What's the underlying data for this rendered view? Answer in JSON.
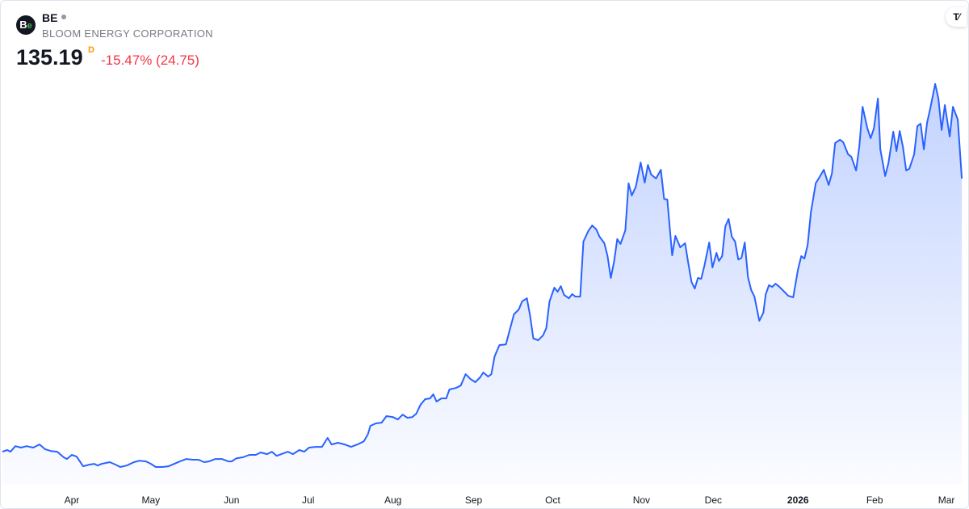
{
  "header": {
    "logo_text": "Be",
    "ticker": "BE",
    "company": "BLOOM ENERGY CORPORATION",
    "price": "135.19",
    "interval": "D",
    "change": "-15.47% (24.75)",
    "watermark": "TV"
  },
  "colors": {
    "line": "#2962ff",
    "negative": "#f23645",
    "interval": "#ff9800"
  },
  "chart_data": {
    "type": "area",
    "title": "BE",
    "xlabel": "",
    "ylabel": "",
    "x_unit": "days since start (approx. early Mar 2025)",
    "ylim": [
      0,
      208.5
    ],
    "xlim": [
      0,
      357
    ],
    "grid": false,
    "x_ticks": [
      {
        "label": "Apr",
        "day": 25.8
      },
      {
        "label": "May",
        "day": 55.2
      },
      {
        "label": "Jun",
        "day": 85.2
      },
      {
        "label": "Jul",
        "day": 113.7
      },
      {
        "label": "Aug",
        "day": 145.2
      },
      {
        "label": "Sep",
        "day": 175.2
      },
      {
        "label": "Oct",
        "day": 204.6
      },
      {
        "label": "Nov",
        "day": 237.6
      },
      {
        "label": "Dec",
        "day": 264.3
      },
      {
        "label": "2026",
        "day": 295.8,
        "bold": true
      },
      {
        "label": "Feb",
        "day": 324.3
      },
      {
        "label": "Mar",
        "day": 351.0
      }
    ],
    "series": [
      {
        "name": "BE",
        "points": [
          [
            0,
            22.5
          ],
          [
            1.8,
            23.2
          ],
          [
            3,
            22.5
          ],
          [
            4.8,
            24.8
          ],
          [
            6.9,
            24.2
          ],
          [
            9,
            24.8
          ],
          [
            11.4,
            24.2
          ],
          [
            13.8,
            25.5
          ],
          [
            15.9,
            23.5
          ],
          [
            18,
            22.8
          ],
          [
            20.4,
            22.5
          ],
          [
            22.8,
            20.2
          ],
          [
            24,
            19.5
          ],
          [
            25.8,
            21.2
          ],
          [
            27.6,
            20.5
          ],
          [
            30,
            16.5
          ],
          [
            32.4,
            17.2
          ],
          [
            34.2,
            17.5
          ],
          [
            35.4,
            16.8
          ],
          [
            36.9,
            17.5
          ],
          [
            39.9,
            18.2
          ],
          [
            42,
            17.2
          ],
          [
            43.8,
            16.2
          ],
          [
            46.2,
            16.8
          ],
          [
            48.9,
            18.2
          ],
          [
            51,
            18.8
          ],
          [
            53.4,
            18.5
          ],
          [
            55.2,
            17.5
          ],
          [
            57,
            16.2
          ],
          [
            59.4,
            16.2
          ],
          [
            61.8,
            16.5
          ],
          [
            63.9,
            17.5
          ],
          [
            66,
            18.5
          ],
          [
            68.4,
            19.5
          ],
          [
            70.8,
            19.2
          ],
          [
            72.9,
            19.2
          ],
          [
            75,
            18.2
          ],
          [
            76.8,
            18.5
          ],
          [
            79.2,
            19.5
          ],
          [
            81.6,
            19.5
          ],
          [
            84,
            18.5
          ],
          [
            85.2,
            18.5
          ],
          [
            87,
            19.8
          ],
          [
            89.4,
            20.2
          ],
          [
            91.8,
            21.2
          ],
          [
            94.2,
            21.2
          ],
          [
            96,
            22.2
          ],
          [
            98.4,
            21.5
          ],
          [
            100.2,
            22.5
          ],
          [
            102,
            20.8
          ],
          [
            104.4,
            21.8
          ],
          [
            106.2,
            22.5
          ],
          [
            108,
            21.5
          ],
          [
            110.4,
            23.2
          ],
          [
            112.2,
            22.5
          ],
          [
            114,
            24.2
          ],
          [
            116.4,
            24.5
          ],
          [
            118.8,
            24.5
          ],
          [
            120.9,
            28.2
          ],
          [
            122.4,
            25.5
          ],
          [
            124.8,
            26.2
          ],
          [
            127.2,
            25.5
          ],
          [
            129.6,
            24.5
          ],
          [
            132,
            25.5
          ],
          [
            134.4,
            26.8
          ],
          [
            135.9,
            29.8
          ],
          [
            136.8,
            33.2
          ],
          [
            138.9,
            34.2
          ],
          [
            141,
            34.5
          ],
          [
            142.8,
            37.2
          ],
          [
            145.2,
            36.8
          ],
          [
            147,
            35.8
          ],
          [
            148.8,
            37.8
          ],
          [
            150.6,
            36.5
          ],
          [
            152.4,
            36.8
          ],
          [
            153.9,
            38.2
          ],
          [
            155.4,
            41.8
          ],
          [
            157.2,
            44.2
          ],
          [
            159,
            44.5
          ],
          [
            160.2,
            46.2
          ],
          [
            161.4,
            43.2
          ],
          [
            163.2,
            44.5
          ],
          [
            165,
            44.5
          ],
          [
            166.2,
            48.2
          ],
          [
            168.6,
            48.8
          ],
          [
            170.4,
            49.8
          ],
          [
            172.2,
            54.5
          ],
          [
            174,
            52.5
          ],
          [
            175.8,
            51.2
          ],
          [
            177.6,
            53.2
          ],
          [
            178.8,
            55.2
          ],
          [
            180.6,
            53.5
          ],
          [
            181.8,
            54.5
          ],
          [
            183,
            61.8
          ],
          [
            184.8,
            66.5
          ],
          [
            187.2,
            66.8
          ],
          [
            188.4,
            71.8
          ],
          [
            190.2,
            79.2
          ],
          [
            192,
            81.2
          ],
          [
            193.2,
            84.5
          ],
          [
            195,
            85.8
          ],
          [
            196.2,
            78.5
          ],
          [
            197.4,
            69.2
          ],
          [
            199.2,
            68.5
          ],
          [
            201,
            70.5
          ],
          [
            202.2,
            73.5
          ],
          [
            203.4,
            84.5
          ],
          [
            205.2,
            90.2
          ],
          [
            206.4,
            88.5
          ],
          [
            207.6,
            90.8
          ],
          [
            208.8,
            87.2
          ],
          [
            210.6,
            85.8
          ],
          [
            211.8,
            87.5
          ],
          [
            213,
            86.5
          ],
          [
            214.8,
            86.5
          ],
          [
            216,
            109.2
          ],
          [
            217.8,
            113.5
          ],
          [
            219.3,
            115.8
          ],
          [
            220.8,
            114.2
          ],
          [
            222,
            111.2
          ],
          [
            223.8,
            108.5
          ],
          [
            225,
            103.2
          ],
          [
            226.2,
            94.2
          ],
          [
            227.4,
            100.8
          ],
          [
            228.6,
            110.2
          ],
          [
            229.8,
            108.2
          ],
          [
            231.6,
            113.8
          ],
          [
            232.8,
            133.2
          ],
          [
            234,
            128.2
          ],
          [
            235.5,
            131.8
          ],
          [
            237.3,
            141.8
          ],
          [
            238.8,
            133.5
          ],
          [
            240,
            140.8
          ],
          [
            241.2,
            136.8
          ],
          [
            243,
            135.2
          ],
          [
            244.8,
            138.8
          ],
          [
            246,
            126.8
          ],
          [
            247.2,
            126.5
          ],
          [
            249,
            103.5
          ],
          [
            250.2,
            111.5
          ],
          [
            252,
            106.8
          ],
          [
            253.8,
            108.5
          ],
          [
            255,
            100.2
          ],
          [
            256.2,
            92.5
          ],
          [
            257.4,
            89.8
          ],
          [
            258.6,
            94.2
          ],
          [
            259.8,
            93.8
          ],
          [
            261,
            99.2
          ],
          [
            262.8,
            108.8
          ],
          [
            264,
            98.5
          ],
          [
            265.5,
            104.5
          ],
          [
            266.4,
            101.2
          ],
          [
            267.6,
            103.2
          ],
          [
            268.8,
            115.5
          ],
          [
            270,
            118.5
          ],
          [
            271.2,
            111.2
          ],
          [
            272.4,
            109.2
          ],
          [
            273.6,
            101.8
          ],
          [
            274.8,
            102.5
          ],
          [
            276,
            108.8
          ],
          [
            277.2,
            94.5
          ],
          [
            278.4,
            89.2
          ],
          [
            279.6,
            86.5
          ],
          [
            281.4,
            76.5
          ],
          [
            282.9,
            79.8
          ],
          [
            283.8,
            87.5
          ],
          [
            285,
            91.2
          ],
          [
            286.2,
            90.5
          ],
          [
            287.4,
            91.8
          ],
          [
            288.6,
            90.8
          ],
          [
            290.4,
            88.8
          ],
          [
            292.2,
            86.8
          ],
          [
            294,
            86.2
          ],
          [
            295.8,
            97.8
          ],
          [
            297,
            103.2
          ],
          [
            298.2,
            102.2
          ],
          [
            299.4,
            107.8
          ],
          [
            300.6,
            121.2
          ],
          [
            302.4,
            133.2
          ],
          [
            304.2,
            136.5
          ],
          [
            305.4,
            138.8
          ],
          [
            307.2,
            132.5
          ],
          [
            308.4,
            137.2
          ],
          [
            309.6,
            149.8
          ],
          [
            311.4,
            151.2
          ],
          [
            312.6,
            150.2
          ],
          [
            314.4,
            145.2
          ],
          [
            315.6,
            144.2
          ],
          [
            317.4,
            138.5
          ],
          [
            318.6,
            148.5
          ],
          [
            319.8,
            164.8
          ],
          [
            321.6,
            155.8
          ],
          [
            322.8,
            151.8
          ],
          [
            324,
            155.8
          ],
          [
            325.5,
            168.2
          ],
          [
            326.4,
            147.2
          ],
          [
            328.2,
            136.2
          ],
          [
            329.4,
            141.5
          ],
          [
            331.2,
            154.5
          ],
          [
            332.4,
            146.5
          ],
          [
            333.6,
            154.8
          ],
          [
            334.8,
            148.2
          ],
          [
            336,
            138.5
          ],
          [
            337.2,
            139.2
          ],
          [
            339,
            145.2
          ],
          [
            340.2,
            156.8
          ],
          [
            341.4,
            157.8
          ],
          [
            342.6,
            147.2
          ],
          [
            343.8,
            158.2
          ],
          [
            345,
            164.2
          ],
          [
            346.8,
            174.2
          ],
          [
            348,
            168.2
          ],
          [
            349.2,
            155.2
          ],
          [
            350.4,
            165.5
          ],
          [
            352.2,
            152.5
          ],
          [
            353.4,
            164.8
          ],
          [
            355.2,
            159.5
          ],
          [
            356.7,
            135.19
          ]
        ]
      }
    ]
  }
}
